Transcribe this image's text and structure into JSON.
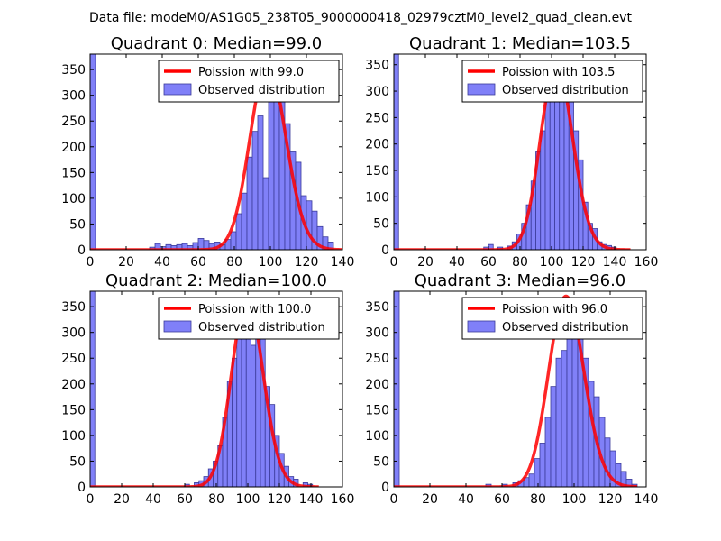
{
  "suptitle": "Data file: modeM0/AS1G05_238T05_9000000418_02979cztM0_level2_quad_clean.evt",
  "colors": {
    "bar_fill": "#8080f8",
    "bar_edge": "#3a3a9a",
    "curve": "#ff0000",
    "axis": "#000000",
    "legend_edge": "#000000",
    "background": "#ffffff"
  },
  "chart_data": [
    {
      "type": "bar",
      "title": "Quadrant 0: Median=99.0",
      "xlim": [
        0,
        140
      ],
      "ylim": [
        0,
        380
      ],
      "xticks": [
        0,
        20,
        40,
        60,
        80,
        100,
        120,
        140
      ],
      "yticks": [
        0,
        50,
        100,
        150,
        200,
        250,
        300,
        350
      ],
      "bin_width": 3,
      "bins": [
        [
          0,
          380
        ],
        [
          33,
          5
        ],
        [
          36,
          12
        ],
        [
          39,
          6
        ],
        [
          42,
          10
        ],
        [
          45,
          8
        ],
        [
          48,
          10
        ],
        [
          51,
          12
        ],
        [
          54,
          8
        ],
        [
          57,
          14
        ],
        [
          60,
          22
        ],
        [
          63,
          18
        ],
        [
          66,
          12
        ],
        [
          69,
          15
        ],
        [
          72,
          10
        ],
        [
          75,
          20
        ],
        [
          78,
          35
        ],
        [
          81,
          70
        ],
        [
          84,
          110
        ],
        [
          87,
          180
        ],
        [
          90,
          230
        ],
        [
          93,
          260
        ],
        [
          96,
          140
        ],
        [
          99,
          320
        ],
        [
          102,
          345
        ],
        [
          105,
          360
        ],
        [
          108,
          245
        ],
        [
          111,
          190
        ],
        [
          114,
          170
        ],
        [
          117,
          105
        ],
        [
          120,
          95
        ],
        [
          123,
          75
        ],
        [
          126,
          45
        ],
        [
          129,
          25
        ],
        [
          132,
          15
        ]
      ],
      "legend": {
        "curve_label": "Poission with 99.0",
        "bar_label": "Observed distribution",
        "placement": "top-right"
      },
      "curve_mean": 99.0,
      "curve_peak": 360,
      "curve_xmax": 140
    },
    {
      "type": "bar",
      "title": "Quadrant 1: Median=103.5",
      "xlim": [
        0,
        160
      ],
      "ylim": [
        0,
        370
      ],
      "xticks": [
        0,
        20,
        40,
        60,
        80,
        100,
        120,
        140,
        160
      ],
      "yticks": [
        0,
        50,
        100,
        150,
        200,
        250,
        300,
        350
      ],
      "bin_width": 3,
      "bins": [
        [
          0,
          370
        ],
        [
          57,
          5
        ],
        [
          60,
          10
        ],
        [
          66,
          5
        ],
        [
          72,
          7
        ],
        [
          75,
          15
        ],
        [
          78,
          30
        ],
        [
          81,
          50
        ],
        [
          84,
          85
        ],
        [
          87,
          130
        ],
        [
          90,
          185
        ],
        [
          93,
          225
        ],
        [
          96,
          300
        ],
        [
          99,
          320
        ],
        [
          102,
          345
        ],
        [
          105,
          315
        ],
        [
          108,
          340
        ],
        [
          111,
          290
        ],
        [
          114,
          225
        ],
        [
          117,
          170
        ],
        [
          120,
          90
        ],
        [
          123,
          50
        ],
        [
          126,
          40
        ],
        [
          129,
          15
        ],
        [
          132,
          10
        ],
        [
          135,
          8
        ],
        [
          138,
          5
        ]
      ],
      "legend": {
        "curve_label": "Poission with 103.5",
        "bar_label": "Observed distribution",
        "placement": "top-right"
      },
      "curve_mean": 103.5,
      "curve_peak": 350,
      "curve_xmax": 150
    },
    {
      "type": "bar",
      "title": "Quadrant 2: Median=100.0",
      "xlim": [
        0,
        160
      ],
      "ylim": [
        0,
        380
      ],
      "xticks": [
        0,
        20,
        40,
        60,
        80,
        100,
        120,
        140,
        160
      ],
      "yticks": [
        0,
        50,
        100,
        150,
        200,
        250,
        300,
        350
      ],
      "bin_width": 3,
      "bins": [
        [
          0,
          380
        ],
        [
          60,
          5
        ],
        [
          66,
          8
        ],
        [
          69,
          12
        ],
        [
          72,
          20
        ],
        [
          75,
          35
        ],
        [
          78,
          50
        ],
        [
          81,
          80
        ],
        [
          84,
          135
        ],
        [
          87,
          205
        ],
        [
          90,
          250
        ],
        [
          93,
          290
        ],
        [
          96,
          305
        ],
        [
          99,
          350
        ],
        [
          102,
          275
        ],
        [
          105,
          340
        ],
        [
          108,
          300
        ],
        [
          111,
          195
        ],
        [
          114,
          160
        ],
        [
          117,
          100
        ],
        [
          120,
          65
        ],
        [
          123,
          40
        ],
        [
          126,
          20
        ],
        [
          129,
          15
        ],
        [
          135,
          8
        ],
        [
          138,
          5
        ]
      ],
      "legend": {
        "curve_label": "Poission with 100.0",
        "bar_label": "Observed distribution",
        "placement": "top-right"
      },
      "curve_mean": 100.0,
      "curve_peak": 365,
      "curve_xmax": 145
    },
    {
      "type": "bar",
      "title": "Quadrant 3: Median=96.0",
      "xlim": [
        0,
        140
      ],
      "ylim": [
        0,
        380
      ],
      "xticks": [
        0,
        20,
        40,
        60,
        80,
        100,
        120,
        140
      ],
      "yticks": [
        0,
        50,
        100,
        150,
        200,
        250,
        300,
        350
      ],
      "bin_width": 3,
      "bins": [
        [
          0,
          380
        ],
        [
          51,
          5
        ],
        [
          60,
          5
        ],
        [
          66,
          8
        ],
        [
          69,
          12
        ],
        [
          72,
          18
        ],
        [
          75,
          25
        ],
        [
          78,
          55
        ],
        [
          81,
          85
        ],
        [
          84,
          135
        ],
        [
          87,
          195
        ],
        [
          90,
          250
        ],
        [
          93,
          265
        ],
        [
          96,
          345
        ],
        [
          99,
          305
        ],
        [
          102,
          360
        ],
        [
          105,
          250
        ],
        [
          108,
          205
        ],
        [
          111,
          175
        ],
        [
          114,
          135
        ],
        [
          117,
          95
        ],
        [
          120,
          70
        ],
        [
          123,
          45
        ],
        [
          126,
          30
        ],
        [
          129,
          15
        ],
        [
          132,
          5
        ]
      ],
      "legend": {
        "curve_label": "Poission with 96.0",
        "bar_label": "Observed distribution",
        "placement": "top-right"
      },
      "curve_mean": 96.0,
      "curve_peak": 370,
      "curve_xmax": 135
    }
  ]
}
